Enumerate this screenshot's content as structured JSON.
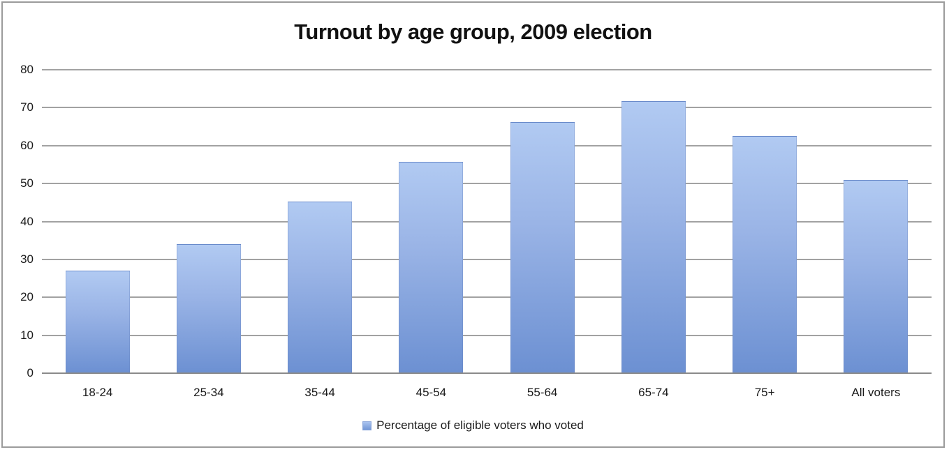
{
  "chart_data": {
    "type": "bar",
    "title": "Turnout by age group, 2009 election",
    "categories": [
      "18-24",
      "25-34",
      "35-44",
      "45-54",
      "55-64",
      "65-74",
      "75+",
      "All voters"
    ],
    "values": [
      27,
      34,
      45.3,
      55.7,
      66.3,
      71.7,
      62.5,
      51
    ],
    "series_name": "Percentage of eligible voters who voted",
    "xlabel": "",
    "ylabel": "",
    "ylim": [
      0,
      80
    ],
    "yticks": [
      0,
      10,
      20,
      30,
      40,
      50,
      60,
      70,
      80
    ],
    "grid": true,
    "legend_position": "bottom",
    "colors": {
      "bar_top": "#b1caf2",
      "bar_bottom": "#6c90d2",
      "gridline": "#a2a2a2",
      "axis_line": "#8a8a8a",
      "text": "#1a1a1a",
      "frame_border": "#9b9b9b",
      "background": "#ffffff"
    }
  }
}
